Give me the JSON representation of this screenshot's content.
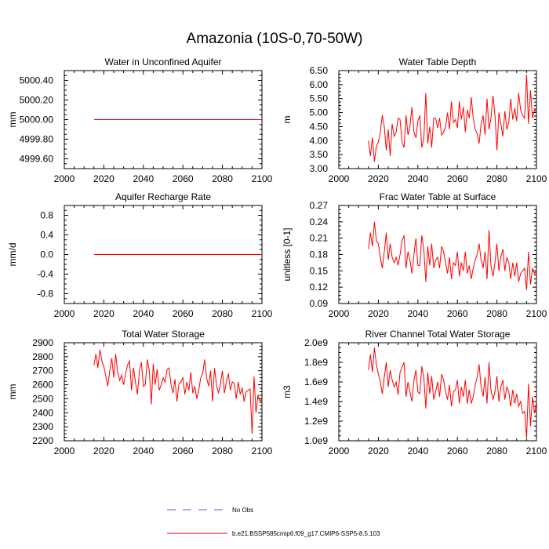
{
  "title": "Amazonia (10S-0,70-50W)",
  "legend": {
    "obs_label": "No Obs",
    "obs_color": "#5b6ec8",
    "model_label": "b.e21.BSSP585cmip6.f09_g17.CMIP6-SSP5-8.5.103",
    "model_color": "#ff0000"
  },
  "chart_data": [
    {
      "type": "line",
      "title": "Water in Unconfined Aquifer",
      "ylabel": "mm",
      "xlim": [
        2000,
        2100
      ],
      "ylim": [
        4999.5,
        5000.5
      ],
      "xticks": [
        2000,
        2020,
        2040,
        2060,
        2080,
        2100
      ],
      "yticks": [
        4999.6,
        4999.8,
        5000.0,
        5000.2,
        5000.4
      ],
      "ytick_labels": [
        "4999.60",
        "4999.80",
        "5000.00",
        "5000.20",
        "5000.40"
      ],
      "series": [
        {
          "name": "b.e21.BSSP585cmip6.f09_g17.CMIP6-SSP5-8.5.103",
          "x_start": 2015,
          "x_step": 1,
          "values": [
            5000,
            5000,
            5000,
            5000,
            5000,
            5000,
            5000,
            5000,
            5000,
            5000,
            5000,
            5000,
            5000,
            5000,
            5000,
            5000,
            5000,
            5000,
            5000,
            5000,
            5000,
            5000,
            5000,
            5000,
            5000,
            5000,
            5000,
            5000,
            5000,
            5000,
            5000,
            5000,
            5000,
            5000,
            5000,
            5000,
            5000,
            5000,
            5000,
            5000,
            5000,
            5000,
            5000,
            5000,
            5000,
            5000,
            5000,
            5000,
            5000,
            5000,
            5000,
            5000,
            5000,
            5000,
            5000,
            5000,
            5000,
            5000,
            5000,
            5000,
            5000,
            5000,
            5000,
            5000,
            5000,
            5000,
            5000,
            5000,
            5000,
            5000,
            5000,
            5000,
            5000,
            5000,
            5000,
            5000,
            5000,
            5000,
            5000,
            5000,
            5000,
            5000,
            5000,
            5000,
            5000,
            5000
          ]
        }
      ]
    },
    {
      "type": "line",
      "title": "Water Table Depth",
      "ylabel": "m",
      "xlim": [
        2000,
        2100
      ],
      "ylim": [
        3.0,
        6.5
      ],
      "xticks": [
        2000,
        2020,
        2040,
        2060,
        2080,
        2100
      ],
      "yticks": [
        3.0,
        3.5,
        4.0,
        4.5,
        5.0,
        5.5,
        6.0,
        6.5
      ],
      "ytick_labels": [
        "3.00",
        "3.50",
        "4.00",
        "4.50",
        "5.00",
        "5.50",
        "6.00",
        "6.50"
      ],
      "series": [
        {
          "name": "b.e21.BSSP585cmip6.f09_g17.CMIP6-SSP5-8.5.103",
          "x_start": 2015,
          "x_step": 1,
          "values": [
            4.0,
            3.45,
            4.1,
            3.25,
            3.8,
            3.95,
            4.3,
            4.9,
            4.5,
            3.65,
            4.4,
            3.45,
            4.6,
            4.15,
            4.3,
            4.8,
            4.75,
            3.95,
            3.75,
            4.9,
            4.2,
            4.5,
            5.2,
            4.3,
            4.1,
            4.7,
            4.9,
            3.75,
            4.05,
            5.7,
            3.9,
            4.5,
            3.75,
            4.8,
            4.8,
            4.45,
            4.8,
            4.2,
            4.3,
            4.5,
            5.0,
            4.4,
            5.4,
            4.65,
            4.75,
            4.45,
            5.4,
            4.75,
            5.2,
            4.3,
            5.1,
            4.8,
            5.55,
            4.8,
            4.4,
            4.25,
            3.9,
            4.6,
            4.9,
            4.2,
            5.5,
            4.4,
            4.8,
            5.6,
            4.9,
            3.65,
            5.0,
            4.6,
            4.15,
            5.05,
            4.4,
            4.65,
            5.5,
            4.75,
            5.15,
            4.7,
            5.7,
            5.1,
            4.9,
            4.8,
            6.35,
            4.6,
            5.8,
            4.8,
            5.1,
            5.0
          ]
        }
      ]
    },
    {
      "type": "line",
      "title": "Aquifer Recharge Rate",
      "ylabel": "mm/d",
      "xlim": [
        2000,
        2100
      ],
      "ylim": [
        -1.0,
        1.0
      ],
      "xticks": [
        2000,
        2020,
        2040,
        2060,
        2080,
        2100
      ],
      "yticks": [
        -0.8,
        -0.4,
        0.0,
        0.4,
        0.8
      ],
      "ytick_labels": [
        "-0.8",
        "-0.4",
        "0.0",
        "0.4",
        "0.8"
      ],
      "series": [
        {
          "name": "b.e21.BSSP585cmip6.f09_g17.CMIP6-SSP5-8.5.103",
          "x_start": 2015,
          "x_step": 1,
          "values": [
            0,
            0,
            0,
            0,
            0,
            0,
            0,
            0,
            0,
            0,
            0,
            0,
            0,
            0,
            0,
            0,
            0,
            0,
            0,
            0,
            0,
            0,
            0,
            0,
            0,
            0,
            0,
            0,
            0,
            0,
            0,
            0,
            0,
            0,
            0,
            0,
            0,
            0,
            0,
            0,
            0,
            0,
            0,
            0,
            0,
            0,
            0,
            0,
            0,
            0,
            0,
            0,
            0,
            0,
            0,
            0,
            0,
            0,
            0,
            0,
            0,
            0,
            0,
            0,
            0,
            0,
            0,
            0,
            0,
            0,
            0,
            0,
            0,
            0,
            0,
            0,
            0,
            0,
            0,
            0,
            0,
            0,
            0,
            0,
            0,
            0
          ]
        }
      ]
    },
    {
      "type": "line",
      "title": "Frac Water Table at Surface",
      "ylabel": "unitless [0-1]",
      "xlim": [
        2000,
        2100
      ],
      "ylim": [
        0.09,
        0.27
      ],
      "xticks": [
        2000,
        2020,
        2040,
        2060,
        2080,
        2100
      ],
      "yticks": [
        0.09,
        0.12,
        0.15,
        0.18,
        0.21,
        0.24,
        0.27
      ],
      "ytick_labels": [
        "0.09",
        "0.12",
        "0.15",
        "0.18",
        "0.21",
        "0.24",
        "0.27"
      ],
      "series": [
        {
          "name": "b.e21.BSSP585cmip6.f09_g17.CMIP6-SSP5-8.5.103",
          "x_start": 2015,
          "x_step": 1,
          "values": [
            0.19,
            0.22,
            0.195,
            0.24,
            0.205,
            0.2,
            0.175,
            0.155,
            0.185,
            0.22,
            0.17,
            0.2,
            0.175,
            0.165,
            0.175,
            0.16,
            0.18,
            0.205,
            0.215,
            0.155,
            0.185,
            0.17,
            0.145,
            0.18,
            0.21,
            0.16,
            0.16,
            0.215,
            0.19,
            0.13,
            0.195,
            0.16,
            0.2,
            0.155,
            0.17,
            0.175,
            0.155,
            0.195,
            0.185,
            0.165,
            0.145,
            0.175,
            0.135,
            0.165,
            0.16,
            0.185,
            0.14,
            0.165,
            0.15,
            0.185,
            0.145,
            0.16,
            0.135,
            0.155,
            0.17,
            0.18,
            0.2,
            0.17,
            0.155,
            0.185,
            0.135,
            0.225,
            0.16,
            0.14,
            0.165,
            0.2,
            0.15,
            0.175,
            0.19,
            0.15,
            0.175,
            0.165,
            0.135,
            0.165,
            0.14,
            0.165,
            0.13,
            0.145,
            0.15,
            0.155,
            0.115,
            0.185,
            0.125,
            0.155,
            0.145,
            0.15
          ]
        }
      ]
    },
    {
      "type": "line",
      "title": "Total Water Storage",
      "ylabel": "mm",
      "xlim": [
        2000,
        2100
      ],
      "ylim": [
        2200,
        2900
      ],
      "xticks": [
        2000,
        2020,
        2040,
        2060,
        2080,
        2100
      ],
      "yticks": [
        2200,
        2300,
        2400,
        2500,
        2600,
        2700,
        2800,
        2900
      ],
      "ytick_labels": [
        "2200",
        "2300",
        "2400",
        "2500",
        "2600",
        "2700",
        "2800",
        "2900"
      ],
      "series": [
        {
          "name": "b.e21.BSSP585cmip6.f09_g17.CMIP6-SSP5-8.5.103",
          "x_start": 2015,
          "x_step": 1,
          "values": [
            2740,
            2820,
            2720,
            2850,
            2770,
            2730,
            2660,
            2590,
            2700,
            2790,
            2650,
            2820,
            2690,
            2630,
            2670,
            2600,
            2680,
            2740,
            2770,
            2560,
            2720,
            2620,
            2530,
            2700,
            2760,
            2590,
            2600,
            2780,
            2700,
            2460,
            2750,
            2600,
            2710,
            2560,
            2600,
            2650,
            2620,
            2710,
            2720,
            2600,
            2540,
            2640,
            2480,
            2610,
            2620,
            2650,
            2530,
            2620,
            2560,
            2690,
            2540,
            2590,
            2500,
            2560,
            2650,
            2680,
            2780,
            2650,
            2590,
            2700,
            2480,
            2720,
            2600,
            2540,
            2610,
            2700,
            2540,
            2620,
            2680,
            2560,
            2620,
            2610,
            2500,
            2620,
            2530,
            2580,
            2480,
            2550,
            2560,
            2570,
            2250,
            2660,
            2400,
            2530,
            2480,
            2500
          ]
        }
      ]
    },
    {
      "type": "line",
      "title": "River Channel Total Water Storage",
      "ylabel": "m3",
      "xlim": [
        2000,
        2100
      ],
      "ylim": [
        1000000000.0,
        2000000000.0
      ],
      "xticks": [
        2000,
        2020,
        2040,
        2060,
        2080,
        2100
      ],
      "yticks": [
        1000000000.0,
        1200000000.0,
        1400000000.0,
        1600000000.0,
        1800000000.0,
        2000000000.0
      ],
      "ytick_labels": [
        "1.0e9",
        "1.2e9",
        "1.4e9",
        "1.6e9",
        "1.8e9",
        "2.0e9"
      ],
      "series": [
        {
          "name": "b.e21.BSSP585cmip6.f09_g17.CMIP6-SSP5-8.5.103",
          "x_start": 2015,
          "x_step": 1,
          "values": [
            1720000000.0,
            1880000000.0,
            1700000000.0,
            1950000000.0,
            1780000000.0,
            1680000000.0,
            1600000000.0,
            1480000000.0,
            1650000000.0,
            1800000000.0,
            1550000000.0,
            1720000000.0,
            1620000000.0,
            1550000000.0,
            1600000000.0,
            1470000000.0,
            1700000000.0,
            1750000000.0,
            1800000000.0,
            1450000000.0,
            1600000000.0,
            1500000000.0,
            1400000000.0,
            1620000000.0,
            1720000000.0,
            1500000000.0,
            1480000000.0,
            1760000000.0,
            1650000000.0,
            1330000000.0,
            1700000000.0,
            1480000000.0,
            1660000000.0,
            1420000000.0,
            1500000000.0,
            1600000000.0,
            1450000000.0,
            1680000000.0,
            1620000000.0,
            1500000000.0,
            1420000000.0,
            1570000000.0,
            1350000000.0,
            1500000000.0,
            1520000000.0,
            1620000000.0,
            1380000000.0,
            1550000000.0,
            1450000000.0,
            1620000000.0,
            1380000000.0,
            1520000000.0,
            1380000000.0,
            1450000000.0,
            1570000000.0,
            1650000000.0,
            1780000000.0,
            1550000000.0,
            1450000000.0,
            1650000000.0,
            1380000000.0,
            1800000000.0,
            1520000000.0,
            1420000000.0,
            1500000000.0,
            1660000000.0,
            1400000000.0,
            1550000000.0,
            1620000000.0,
            1420000000.0,
            1550000000.0,
            1500000000.0,
            1350000000.0,
            1520000000.0,
            1380000000.0,
            1480000000.0,
            1350000000.0,
            1400000000.0,
            1280000000.0,
            1300000000.0,
            1030000000.0,
            1580000000.0,
            1150000000.0,
            1450000000.0,
            1280000000.0,
            1400000000.0
          ]
        }
      ]
    }
  ]
}
